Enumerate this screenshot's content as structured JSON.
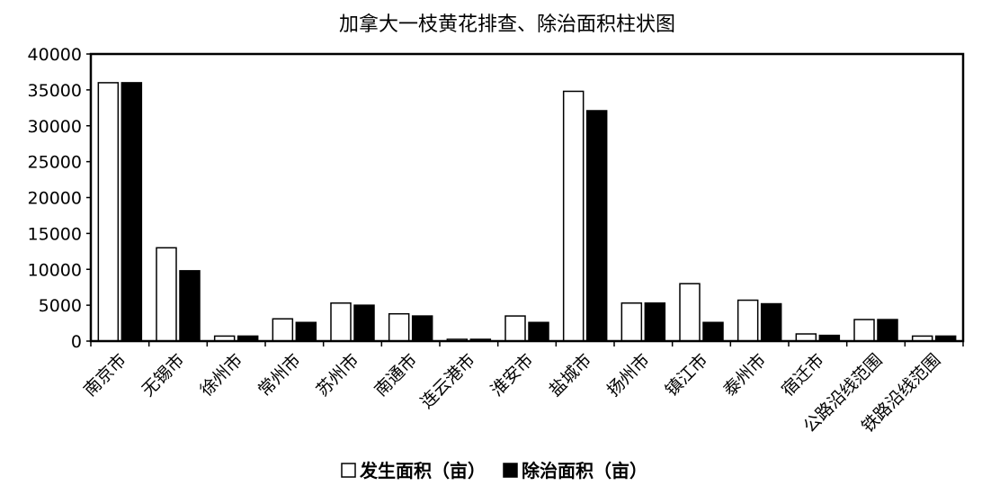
{
  "chart_data": {
    "type": "bar",
    "title": "加拿大一枝黄花排查、除治面积柱状图",
    "categories": [
      "南京市",
      "无锡市",
      "徐州市",
      "常州市",
      "苏州市",
      "南通市",
      "连云港市",
      "淮安市",
      "盐城市",
      "扬州市",
      "镇江市",
      "泰州市",
      "宿迁市",
      "公路沿线范围",
      "铁路沿线范围"
    ],
    "series": [
      {
        "name": "发生面积（亩）",
        "color": "#ffffff",
        "values": [
          36000,
          13000,
          700,
          3100,
          5300,
          3800,
          250,
          3500,
          34800,
          5300,
          8000,
          5700,
          1000,
          3000,
          700
        ]
      },
      {
        "name": "除治面积（亩）",
        "color": "#000000",
        "values": [
          36000,
          9800,
          700,
          2600,
          5000,
          3500,
          250,
          2600,
          32100,
          5300,
          2600,
          5200,
          800,
          3000,
          700
        ]
      }
    ],
    "ylim": [
      0,
      40000
    ],
    "yticks": [
      0,
      5000,
      10000,
      15000,
      20000,
      25000,
      30000,
      35000,
      40000
    ],
    "xlabel": "",
    "ylabel": "",
    "grid": false,
    "legend": "bottom"
  }
}
